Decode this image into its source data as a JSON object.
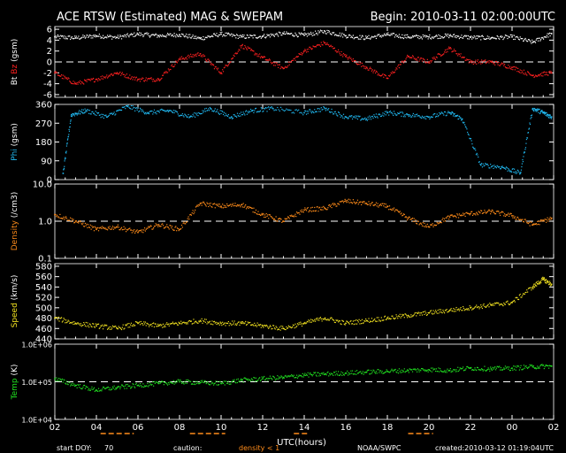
{
  "header": {
    "title": "ACE RTSW (Estimated) MAG & SWEPAM",
    "begin": "Begin: 2010-03-11 02:00:00UTC"
  },
  "footer": {
    "start_doy_label": "start DOY:",
    "start_doy_value": "70",
    "caution_label": "caution:",
    "caution_value": "density < 1",
    "source": "NOAA/SWPC",
    "created": "created:2010-03-12 01:19:04UTC"
  },
  "colors": {
    "white": "#ffffff",
    "bz": "#ff2020",
    "phi": "#20b8f0",
    "density": "#ff8c1a",
    "speed": "#f0e020",
    "temp": "#20e020",
    "frame": "#cccccc",
    "caution": "#ff8c1a"
  },
  "chart_data": {
    "type": "scatter",
    "xlabel": "UTC(hours)",
    "x_ticks": [
      "02",
      "04",
      "06",
      "08",
      "10",
      "12",
      "14",
      "16",
      "18",
      "20",
      "22",
      "00",
      "02"
    ],
    "panels": [
      {
        "id": "mag",
        "ylabel_parts": [
          {
            "text": "Bt",
            "color": "#ffffff"
          },
          {
            "text": " ",
            "color": "#ffffff"
          },
          {
            "text": "Bz",
            "color": "#ff2020"
          },
          {
            "text": " (gsm)",
            "color": "#ffffff"
          }
        ],
        "ylim": [
          -6.5,
          6.5
        ],
        "yticks": [
          "6",
          "4",
          "2",
          "0",
          "-2",
          "-4",
          "-6"
        ],
        "ytick_values": [
          6,
          4,
          2,
          0,
          -2,
          -4,
          -6
        ],
        "dashed_line": 0,
        "series": [
          {
            "name": "Bt",
            "color": "#ffffff",
            "x": [
              0,
              1,
              2,
              3,
              4,
              5,
              6,
              7,
              8,
              9,
              10,
              11,
              12,
              13,
              14,
              15,
              16,
              17,
              18,
              19,
              20,
              21,
              22,
              23,
              23.9
            ],
            "y": [
              4.6,
              4.4,
              4.8,
              4.5,
              5.1,
              4.8,
              5.0,
              4.3,
              5.1,
              4.6,
              4.7,
              5.2,
              4.9,
              5.6,
              4.8,
              4.4,
              5.0,
              4.6,
              4.6,
              4.8,
              4.5,
              4.4,
              4.6,
              3.6,
              5.2
            ]
          },
          {
            "name": "Bz",
            "color": "#ff2020",
            "x": [
              0,
              1,
              2,
              3,
              4,
              5,
              6,
              7,
              8,
              9,
              10,
              11,
              12,
              13,
              14,
              15,
              16,
              17,
              18,
              19,
              20,
              21,
              22,
              23,
              23.9
            ],
            "y": [
              -2.0,
              -4.0,
              -3.2,
              -2.0,
              -3.2,
              -3.2,
              0.5,
              1.5,
              -2.0,
              3.0,
              0.8,
              -1.2,
              2.0,
              3.5,
              1.0,
              -1.0,
              -3.0,
              1.0,
              0.0,
              2.5,
              0.0,
              0.0,
              -1.0,
              -2.5,
              -2.0
            ]
          }
        ]
      },
      {
        "id": "phi",
        "ylabel_parts": [
          {
            "text": "Phi",
            "color": "#20b8f0"
          },
          {
            "text": " (gsm)",
            "color": "#ffffff"
          }
        ],
        "ylim": [
          0,
          360
        ],
        "yticks": [
          "360",
          "270",
          "180",
          "90",
          "0"
        ],
        "ytick_values": [
          360,
          270,
          180,
          90,
          0
        ],
        "series": [
          {
            "name": "Phi",
            "color": "#20b8f0",
            "x": [
              0.4,
              0.8,
              1.5,
              2.5,
              3.5,
              4.5,
              5.5,
              6.5,
              7.5,
              8.5,
              9.5,
              10.5,
              12.0,
              13.0,
              14.0,
              15.0,
              16.0,
              17.0,
              18.0,
              19.0,
              19.6,
              20.5,
              21.5,
              22.4,
              23.0,
              23.5,
              23.9
            ],
            "y": [
              30,
              310,
              330,
              300,
              350,
              320,
              330,
              300,
              340,
              300,
              330,
              340,
              320,
              340,
              300,
              290,
              320,
              310,
              300,
              320,
              290,
              70,
              60,
              30,
              340,
              320,
              300
            ]
          }
        ]
      },
      {
        "id": "density",
        "ylabel_parts": [
          {
            "text": "Density",
            "color": "#ff8c1a"
          },
          {
            "text": " (/cm3)",
            "color": "#ffffff"
          }
        ],
        "yscale": "log",
        "ylim": [
          0.1,
          10
        ],
        "yticks": [
          "10.0",
          "1.0",
          "0.1"
        ],
        "ytick_values": [
          10,
          1,
          0.1
        ],
        "dashed_line": 1,
        "series": [
          {
            "name": "Density",
            "color": "#ff8c1a",
            "x": [
              0,
              1,
              2,
              3,
              4,
              5,
              6,
              7,
              8,
              9,
              10,
              11,
              12,
              13,
              14,
              15,
              16,
              17,
              18,
              19,
              20,
              21,
              22,
              23,
              23.9
            ],
            "y": [
              1.5,
              1.0,
              0.6,
              0.7,
              0.5,
              0.8,
              0.6,
              3.0,
              2.5,
              2.8,
              1.5,
              1.0,
              2.0,
              2.2,
              3.5,
              3.0,
              2.5,
              1.2,
              0.7,
              1.3,
              1.6,
              1.8,
              1.4,
              0.8,
              1.2
            ]
          }
        ]
      },
      {
        "id": "speed",
        "ylabel_parts": [
          {
            "text": "Speed",
            "color": "#f0e020"
          },
          {
            "text": " (km/s)",
            "color": "#ffffff"
          }
        ],
        "ylim": [
          440,
          585
        ],
        "yticks": [
          "580",
          "560",
          "540",
          "520",
          "500",
          "480",
          "460",
          "440"
        ],
        "ytick_values": [
          580,
          560,
          540,
          520,
          500,
          480,
          460,
          440
        ],
        "series": [
          {
            "name": "Speed",
            "color": "#f0e020",
            "x": [
              0,
              1,
              2,
              3,
              4,
              5,
              6,
              7,
              8,
              9,
              10,
              11,
              12,
              13,
              14,
              15,
              16,
              17,
              18,
              19,
              20,
              21,
              22,
              23,
              23.5,
              23.9
            ],
            "y": [
              480,
              470,
              465,
              460,
              470,
              465,
              470,
              475,
              470,
              470,
              465,
              460,
              470,
              480,
              470,
              475,
              480,
              485,
              490,
              495,
              500,
              505,
              510,
              540,
              555,
              545
            ]
          }
        ]
      },
      {
        "id": "temp",
        "ylabel_parts": [
          {
            "text": "Temp",
            "color": "#20e020"
          },
          {
            "text": " (K)",
            "color": "#ffffff"
          }
        ],
        "yscale": "log",
        "ylim": [
          10000,
          1000000
        ],
        "yticks": [
          "1.0E+06",
          "1.0E+05",
          "1.0E+04"
        ],
        "ytick_values": [
          1000000,
          100000,
          10000
        ],
        "dashed_line": 100000,
        "series": [
          {
            "name": "Temp",
            "color": "#20e020",
            "x": [
              0,
              1,
              2,
              3,
              4,
              5,
              6,
              7,
              8,
              9,
              10,
              11,
              12,
              13,
              14,
              15,
              16,
              17,
              18,
              19,
              20,
              21,
              22,
              23,
              23.9
            ],
            "y": [
              120000,
              80000,
              60000,
              70000,
              80000,
              90000,
              100000,
              95000,
              90000,
              110000,
              120000,
              130000,
              150000,
              160000,
              170000,
              180000,
              190000,
              200000,
              210000,
              200000,
              230000,
              220000,
              230000,
              250000,
              260000
            ]
          }
        ]
      }
    ]
  }
}
